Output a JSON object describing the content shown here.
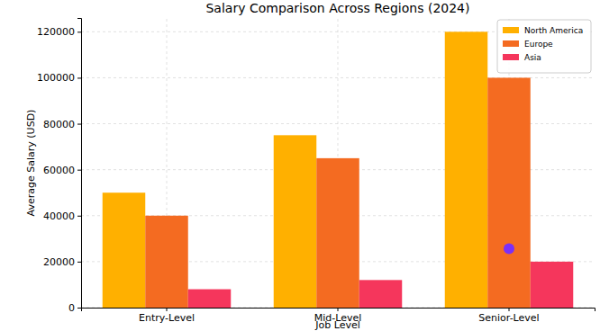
{
  "chart_data": {
    "type": "bar",
    "title": "Salary Comparison Across Regions (2024)",
    "x_label": "Job Level",
    "y_label": "Average Salary (USD)",
    "categories": [
      "Entry-Level",
      "Mid-Level",
      "Senior-Level"
    ],
    "series": [
      {
        "name": "North America",
        "color": "#ffb000",
        "values": [
          50000,
          75000,
          120000
        ]
      },
      {
        "name": "Europe",
        "color": "#f46b21",
        "values": [
          40000,
          65000,
          100000
        ]
      },
      {
        "name": "Asia",
        "color": "#f5365c",
        "values": [
          8000,
          12000,
          20000
        ]
      }
    ],
    "highlight": {
      "category": "Senior-Level",
      "value": 25600,
      "color": "#7b2ff7",
      "marker": "circle"
    },
    "ylim": [
      0,
      126000
    ],
    "yticks": [
      0,
      20000,
      40000,
      60000,
      80000,
      100000,
      120000
    ],
    "grid": true,
    "legend": "upper right"
  }
}
